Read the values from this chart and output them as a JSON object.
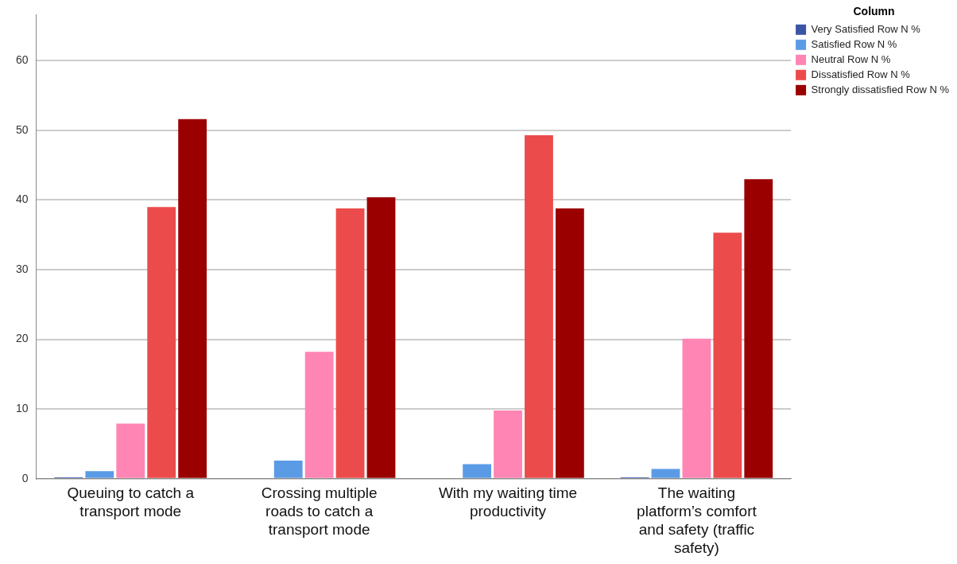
{
  "chart_data": {
    "type": "bar",
    "legend_title": "Column",
    "categories": [
      "Queuing to catch a transport mode",
      "Crossing multiple roads to catch a transport mode",
      "With my waiting time productivity",
      "The waiting platform’s comfort and safety (traffic safety)"
    ],
    "series": [
      {
        "name": "Very Satisfied Row N %",
        "color": "#3a55a4",
        "values": [
          0.2,
          0,
          0,
          0.2
        ]
      },
      {
        "name": "Satisfied Row N %",
        "color": "#5b9be6",
        "values": [
          1.1,
          2.6,
          2.1,
          1.4
        ]
      },
      {
        "name": "Neutral Row N %",
        "color": "#ff85b4",
        "values": [
          7.9,
          18.2,
          9.8,
          20.1
        ]
      },
      {
        "name": "Dissatisfied Row N %",
        "color": "#ec4b4b",
        "values": [
          39.0,
          38.8,
          49.3,
          35.3
        ]
      },
      {
        "name": "Strongly dissatisfied Row N %",
        "color": "#9b0000",
        "values": [
          51.6,
          40.4,
          38.8,
          43.0
        ]
      }
    ],
    "ylim": [
      0,
      66.6
    ],
    "yticks": [
      0,
      10,
      20,
      30,
      40,
      50,
      60
    ],
    "grid": "y",
    "legend": "top right"
  }
}
